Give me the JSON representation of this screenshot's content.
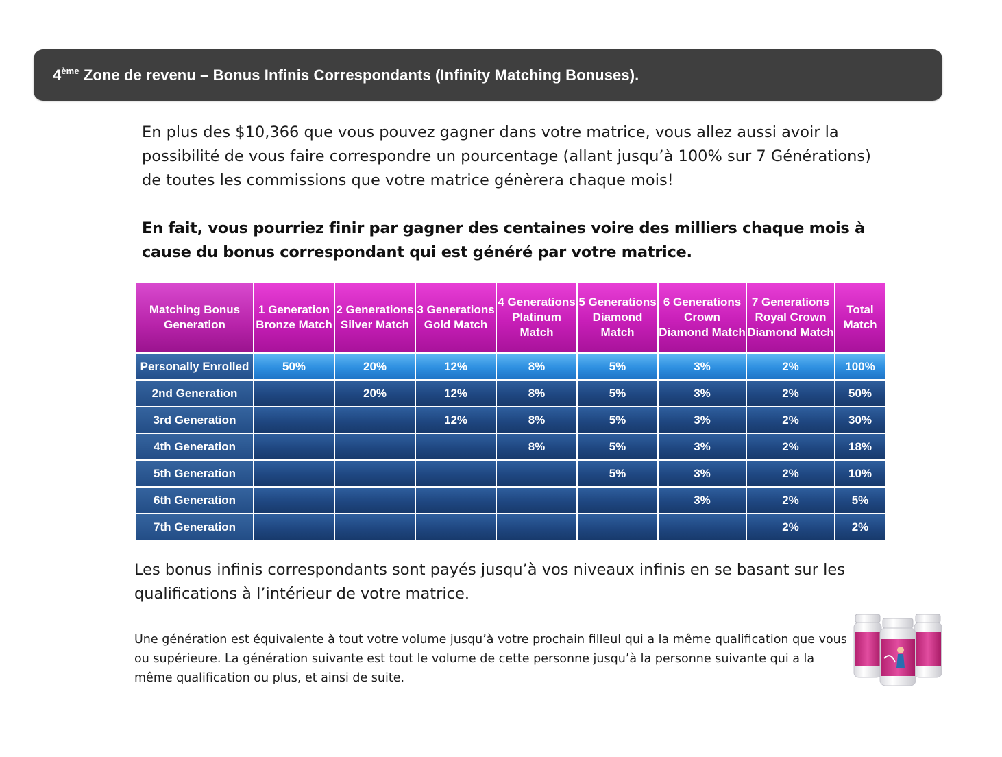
{
  "header": {
    "prefix": "4",
    "superscript": "ème",
    "title": " Zone de revenu – Bonus Infinis Correspondants (Infinity Matching Bonuses)."
  },
  "paragraphs": {
    "intro": "En plus des $10,366 que vous pouvez gagner dans votre matrice, vous allez aussi avoir la possibilité de vous faire correspondre un pourcentage  (allant jusqu’à 100% sur 7 Générations) de toutes les commissions que votre matrice génèrera chaque mois!",
    "highlight": "En fait, vous pourriez finir par gagner des centaines voire des milliers chaque mois à cause du bonus correspondant qui est généré par votre matrice.",
    "infinite": "Les bonus infinis correspondants sont payés jusqu’à vos niveaux infinis en se basant sur les qualifications à l’intérieur de votre matrice.",
    "definition": "Une génération  est équivalente  à tout votre volume jusqu’à  votre prochain filleul qui a la même qualification que vous ou supérieure.  La génération suivante est tout le volume de cette personne jusqu’à  la personne suivante qui a la même qualification ou plus, et ainsi de suite."
  },
  "table": {
    "headers": [
      "Matching Bonus Generation",
      "1 Generation Bronze Match",
      "2 Generations Silver Match",
      "3 Generations Gold Match",
      "4 Generations Platinum Match",
      "5 Generations Diamond Match",
      "6 Generations Crown Diamond Match",
      "7 Generations Royal Crown Diamond Match",
      "Total Match"
    ],
    "rows": [
      {
        "label": "Personally Enrolled",
        "cells": [
          "50%",
          "20%",
          "12%",
          "8%",
          "5%",
          "3%",
          "2%",
          "100%"
        ]
      },
      {
        "label": "2nd Generation",
        "cells": [
          "",
          "20%",
          "12%",
          "8%",
          "5%",
          "3%",
          "2%",
          "50%"
        ]
      },
      {
        "label": "3rd Generation",
        "cells": [
          "",
          "",
          "12%",
          "8%",
          "5%",
          "3%",
          "2%",
          "30%"
        ]
      },
      {
        "label": "4th Generation",
        "cells": [
          "",
          "",
          "",
          "8%",
          "5%",
          "3%",
          "2%",
          "18%"
        ]
      },
      {
        "label": "5th Generation",
        "cells": [
          "",
          "",
          "",
          "",
          "5%",
          "3%",
          "2%",
          "10%"
        ]
      },
      {
        "label": "6th Generation",
        "cells": [
          "",
          "",
          "",
          "",
          "",
          "3%",
          "2%",
          "5%"
        ]
      },
      {
        "label": "7th Generation",
        "cells": [
          "",
          "",
          "",
          "",
          "",
          "",
          "2%",
          "2%"
        ]
      }
    ]
  },
  "colors": {
    "header_bar": "#3f3f3f",
    "table_header_pink": "#c81fb8",
    "first_row_blue": "#2d8fe0",
    "row_dark_blue": "#1f4781",
    "bottle_pink": "#d9368f"
  }
}
